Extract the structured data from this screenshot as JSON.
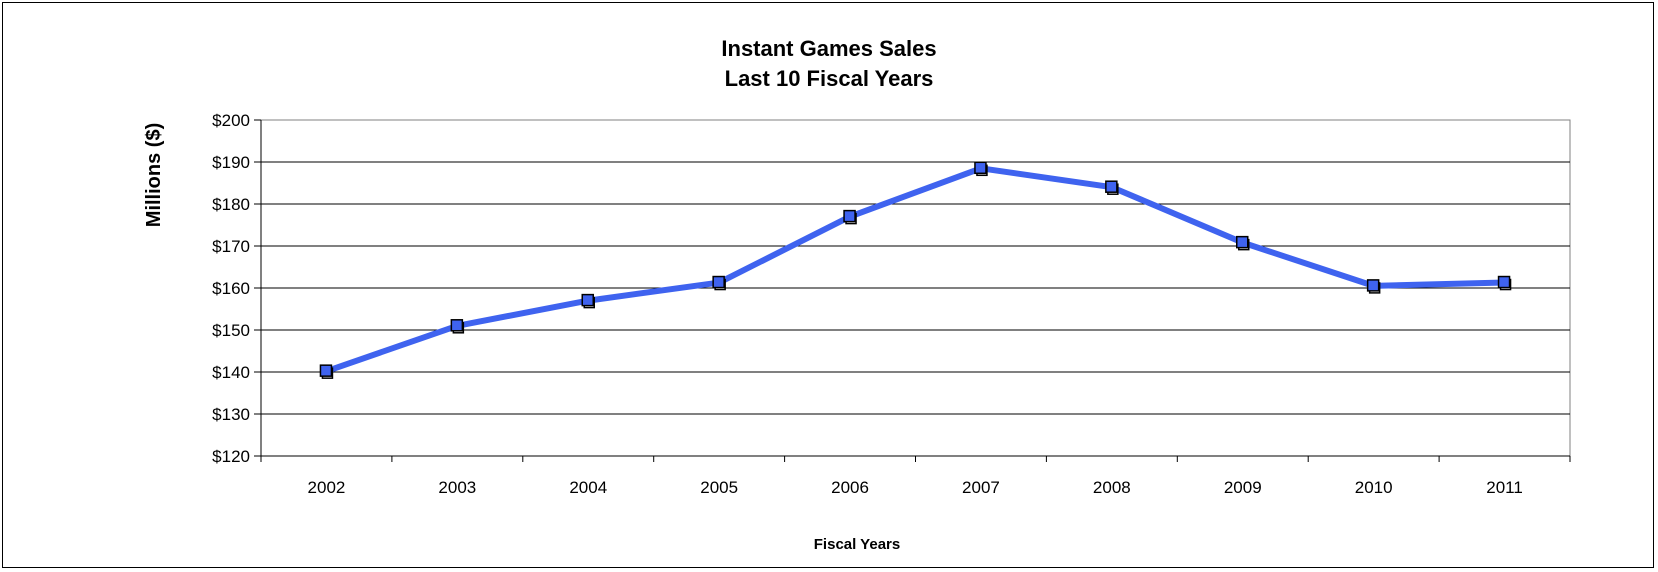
{
  "chart_data": {
    "type": "line",
    "title": "Instant Games Sales",
    "subtitle": "Last 10 Fiscal Years",
    "xlabel": "Fiscal Years",
    "ylabel": "Millions ($)",
    "categories": [
      "2002",
      "2003",
      "2004",
      "2005",
      "2006",
      "2007",
      "2008",
      "2009",
      "2010",
      "2011"
    ],
    "series": [
      {
        "values": [
          140.2,
          151.0,
          157.0,
          161.3,
          177.0,
          188.5,
          184.0,
          170.8,
          160.5,
          161.3
        ],
        "color": "#3f63ef",
        "marker": "square"
      }
    ],
    "ylim": [
      120,
      200
    ],
    "ytick_step": 10,
    "ytick_labels": [
      "$120",
      "$130",
      "$140",
      "$150",
      "$160",
      "$170",
      "$180",
      "$190",
      "$200"
    ],
    "grid": true,
    "legend": "none"
  }
}
